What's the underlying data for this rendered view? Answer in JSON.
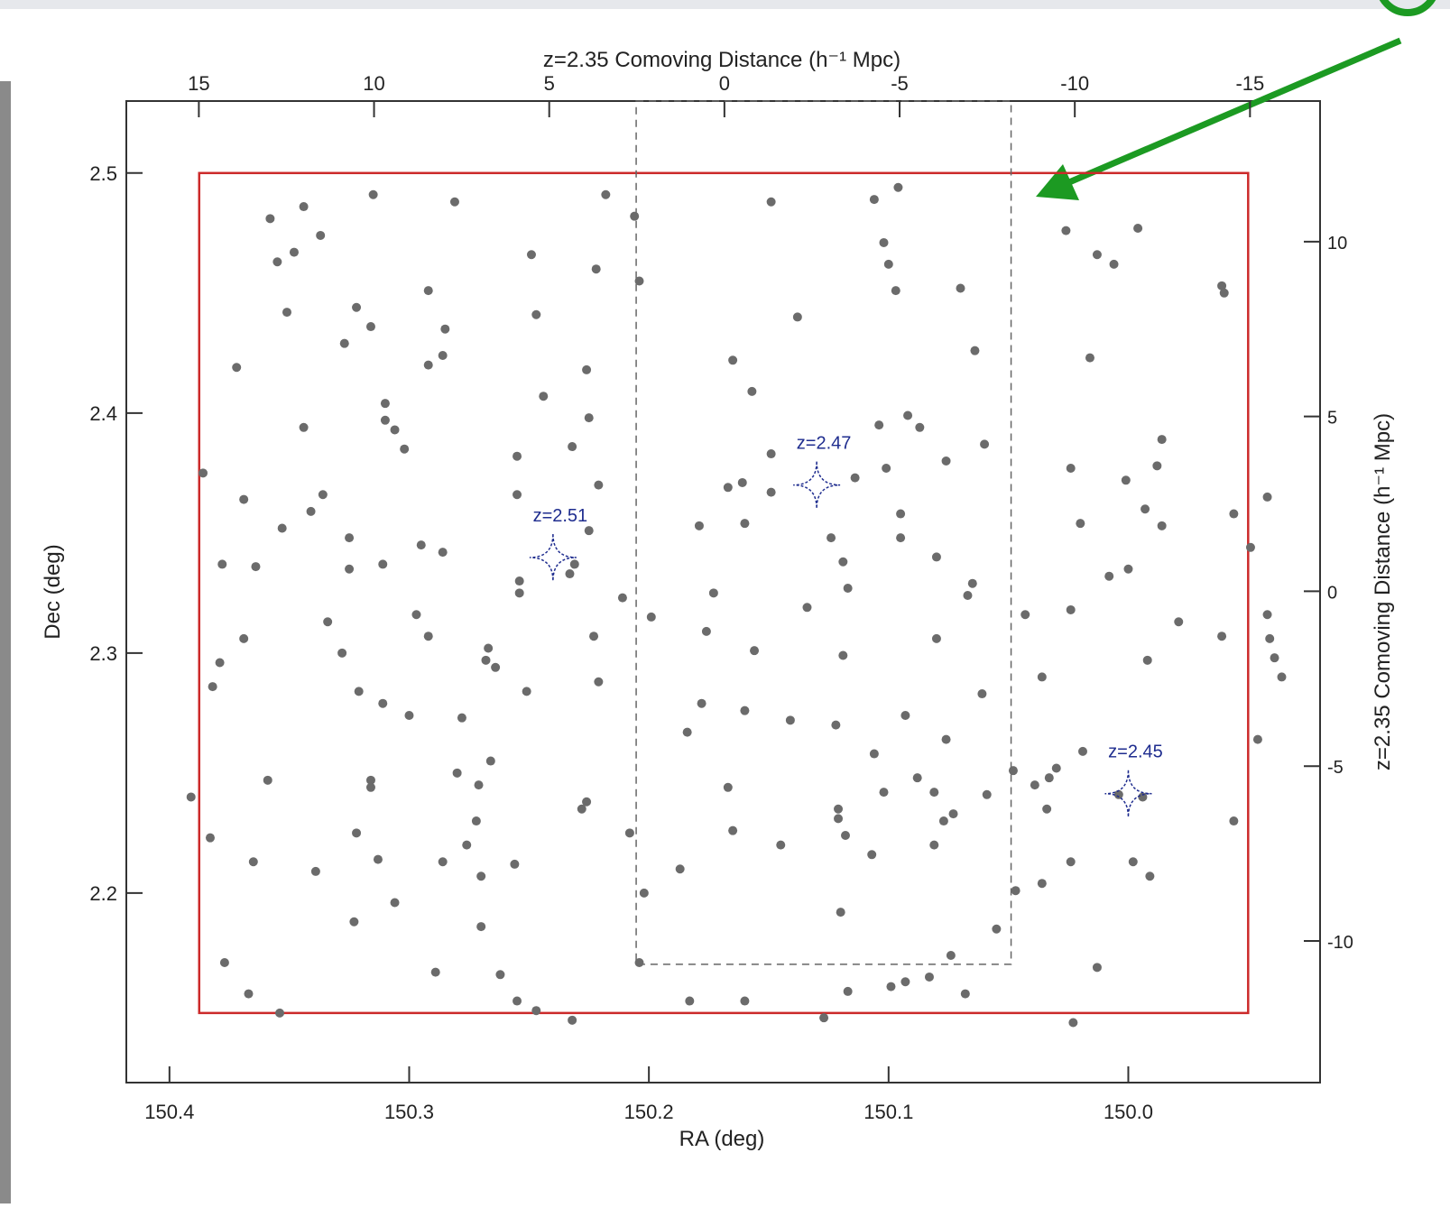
{
  "chart_data": {
    "type": "scatter",
    "xlabel": "RA (deg)",
    "ylabel": "Dec (deg)",
    "x2label": "z=2.35 Comoving Distance (h⁻¹ Mpc)",
    "y2label": "z=2.35 Comoving Distance (h⁻¹ Mpc)",
    "xlim": [
      150.418,
      149.92
    ],
    "ylim": [
      2.121,
      2.53
    ],
    "xticks": [
      150.4,
      150.3,
      150.2,
      150.1,
      {
        "value": 150,
        "label": "150.0"
      }
    ],
    "yticks": [
      2.2,
      2.3,
      2.4,
      2.5
    ],
    "x2lim": [
      17.07,
      -17.0
    ],
    "x2ticks": [
      15,
      10,
      5,
      0,
      -5,
      -10,
      -15
    ],
    "y2lim": [
      -14.05,
      14.02
    ],
    "y2ticks": [
      10,
      5,
      0,
      -5,
      -10
    ],
    "color": "#6b6b6b",
    "x": [
      150.358,
      150.344,
      150.315,
      150.281,
      150.218,
      150.206,
      150.149,
      150.106,
      150.096,
      150.355,
      150.348,
      150.337,
      150.249,
      150.222,
      150.204,
      150.102,
      150.1,
      150.097,
      150.07,
      150.026,
      150.013,
      150.006,
      149.996,
      149.961,
      149.96,
      150.351,
      150.322,
      150.316,
      150.327,
      150.292,
      150.285,
      150.286,
      150.292,
      150.247,
      150.138,
      150.372,
      150.31,
      150.31,
      150.306,
      150.302,
      150.244,
      150.226,
      150.225,
      150.232,
      150.165,
      150.157,
      150.064,
      150.016,
      150.344,
      150.104,
      150.092,
      150.087,
      150.06,
      149.986,
      150.076,
      150.255,
      150.149,
      150.386,
      150.369,
      150.336,
      150.341,
      150.255,
      150.221,
      150.167,
      150.161,
      150.149,
      150.114,
      150.101,
      150.024,
      150.001,
      149.988,
      149.942,
      149.956,
      149.993,
      149.986,
      150.02,
      150.095,
      150.095,
      150.124,
      150.16,
      150.179,
      150.225,
      150.353,
      150.325,
      150.295,
      150.286,
      150.378,
      150.364,
      150.325,
      150.311,
      150.231,
      150.233,
      150.254,
      150.254,
      150.119,
      150.117,
      150.08,
      150.065,
      150.067,
      150.008,
      150.0,
      149.949,
      150.211,
      150.199,
      150.173,
      150.134,
      150.043,
      150.024,
      149.979,
      149.942,
      150.334,
      150.297,
      150.292,
      150.369,
      150.328,
      150.267,
      150.268,
      150.264,
      150.223,
      150.176,
      150.156,
      150.119,
      150.08,
      149.992,
      149.961,
      149.941,
      149.939,
      149.936,
      150.379,
      150.382,
      150.221,
      150.251,
      150.321,
      150.311,
      150.3,
      150.278,
      150.036,
      150.061,
      150.178,
      150.16,
      150.141,
      150.122,
      150.093,
      150.184,
      150.076,
      149.946,
      150.106,
      150.019,
      150.266,
      150.359,
      150.316,
      150.316,
      150.28,
      150.271,
      150.088,
      150.048,
      150.03,
      150.033,
      150.039,
      150.167,
      150.102,
      150.081,
      150.059,
      150.391,
      150.226,
      150.228,
      150.121,
      150.121,
      150.034,
      150.004,
      149.994,
      150.073,
      150.077,
      150.272,
      150.208,
      150.165,
      150.118,
      149.956,
      150.383,
      150.322,
      150.276,
      150.145,
      150.081,
      150.365,
      150.313,
      150.286,
      150.256,
      150.107,
      150.024,
      149.998,
      150.339,
      150.187,
      150.27,
      149.991,
      150.036,
      150.047,
      150.202,
      150.306,
      150.12,
      150.323,
      150.27,
      150.055,
      150.204,
      150.074,
      150.377,
      150.289,
      150.262,
      150.013,
      150.083,
      150.093,
      150.099,
      150.367,
      150.117,
      150.068,
      150.255,
      150.183,
      150.16,
      150.247,
      150.354,
      150.127,
      150.232,
      150.023
    ],
    "y": [
      2.481,
      2.486,
      2.491,
      2.488,
      2.491,
      2.482,
      2.488,
      2.489,
      2.494,
      2.463,
      2.467,
      2.474,
      2.466,
      2.46,
      2.455,
      2.471,
      2.462,
      2.451,
      2.452,
      2.476,
      2.466,
      2.462,
      2.477,
      2.453,
      2.45,
      2.442,
      2.444,
      2.436,
      2.429,
      2.451,
      2.435,
      2.424,
      2.42,
      2.441,
      2.44,
      2.419,
      2.404,
      2.397,
      2.393,
      2.385,
      2.407,
      2.418,
      2.398,
      2.386,
      2.422,
      2.409,
      2.426,
      2.423,
      2.394,
      2.395,
      2.399,
      2.394,
      2.387,
      2.389,
      2.38,
      2.382,
      2.383,
      2.375,
      2.364,
      2.366,
      2.359,
      2.366,
      2.37,
      2.369,
      2.371,
      2.367,
      2.373,
      2.377,
      2.377,
      2.372,
      2.378,
      2.365,
      2.358,
      2.36,
      2.353,
      2.354,
      2.358,
      2.348,
      2.348,
      2.354,
      2.353,
      2.351,
      2.352,
      2.348,
      2.345,
      2.342,
      2.337,
      2.336,
      2.335,
      2.337,
      2.337,
      2.333,
      2.33,
      2.325,
      2.338,
      2.327,
      2.34,
      2.329,
      2.324,
      2.332,
      2.335,
      2.344,
      2.323,
      2.315,
      2.325,
      2.319,
      2.316,
      2.318,
      2.313,
      2.316,
      2.313,
      2.316,
      2.307,
      2.306,
      2.3,
      2.302,
      2.297,
      2.294,
      2.307,
      2.309,
      2.301,
      2.299,
      2.306,
      2.297,
      2.307,
      2.306,
      2.298,
      2.29,
      2.296,
      2.286,
      2.288,
      2.284,
      2.284,
      2.279,
      2.274,
      2.273,
      2.29,
      2.283,
      2.279,
      2.276,
      2.272,
      2.27,
      2.274,
      2.267,
      2.264,
      2.264,
      2.258,
      2.259,
      2.255,
      2.247,
      2.247,
      2.244,
      2.25,
      2.245,
      2.248,
      2.251,
      2.252,
      2.248,
      2.245,
      2.244,
      2.242,
      2.242,
      2.241,
      2.24,
      2.238,
      2.235,
      2.235,
      2.231,
      2.235,
      2.241,
      2.24,
      2.233,
      2.23,
      2.23,
      2.225,
      2.226,
      2.224,
      2.23,
      2.223,
      2.225,
      2.22,
      2.22,
      2.22,
      2.213,
      2.214,
      2.213,
      2.212,
      2.216,
      2.213,
      2.213,
      2.209,
      2.21,
      2.207,
      2.207,
      2.204,
      2.201,
      2.2,
      2.196,
      2.192,
      2.188,
      2.186,
      2.185,
      2.171,
      2.174,
      2.171,
      2.167,
      2.166,
      2.169,
      2.165,
      2.163,
      2.161,
      2.158,
      2.159,
      2.158,
      2.155,
      2.155,
      2.155,
      2.151,
      2.15,
      2.148,
      2.147,
      2.146
    ],
    "regions": [
      {
        "xlim": [
          150.3876,
          149.95
        ],
        "ylim": [
          2.15,
          2.5
        ],
        "color": "#cc2a2a",
        "dashed": false
      },
      {
        "xlim": [
          150.2053,
          150.0489
        ],
        "ylim": [
          2.1703,
          2.53
        ],
        "color": "#666666",
        "dashed": true
      }
    ],
    "annotations": [
      {
        "text": "z=2.51",
        "x": 150.24,
        "y": 2.3398,
        "color": "#1f2d8f"
      },
      {
        "text": "z=2.47",
        "x": 150.13,
        "y": 2.37,
        "color": "#1f2d8f"
      },
      {
        "text": "z=2.45",
        "x": 150.0,
        "y": 2.2414,
        "color": "#1f2d8f"
      }
    ]
  }
}
